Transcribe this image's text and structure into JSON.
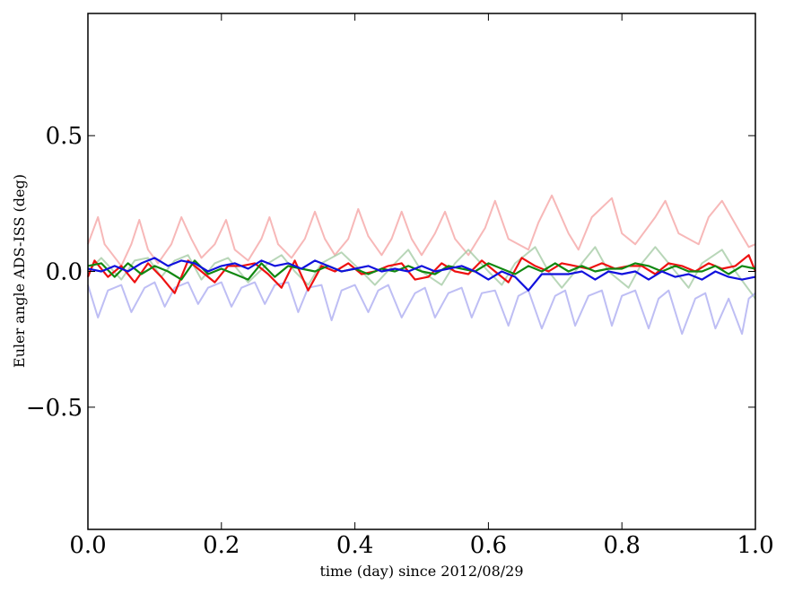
{
  "chart_data": {
    "type": "line",
    "xlabel": "time (day) since 2012/08/29",
    "ylabel": "Euler angle ADS-ISS (deg)",
    "xlim": [
      0.0,
      1.0
    ],
    "ylim": [
      -0.95,
      0.95
    ],
    "xticks": [
      0.0,
      0.2,
      0.4,
      0.6,
      0.8,
      1.0
    ],
    "xtick_labels": [
      "0.0",
      "0.2",
      "0.4",
      "0.6",
      "0.8",
      "1.0"
    ],
    "yticks": [
      -0.5,
      0.0,
      0.5
    ],
    "ytick_labels": [
      "−0.5",
      "0.0",
      "0.5"
    ],
    "grid": false,
    "series": [
      {
        "color": "#f4a0a0",
        "opacity": 0.75,
        "x": [
          0.0,
          0.015,
          0.025,
          0.05,
          0.065,
          0.077,
          0.09,
          0.105,
          0.125,
          0.14,
          0.155,
          0.17,
          0.19,
          0.207,
          0.22,
          0.24,
          0.26,
          0.272,
          0.285,
          0.305,
          0.325,
          0.34,
          0.355,
          0.37,
          0.39,
          0.405,
          0.42,
          0.44,
          0.455,
          0.47,
          0.485,
          0.5,
          0.52,
          0.535,
          0.55,
          0.57,
          0.595,
          0.61,
          0.63,
          0.66,
          0.675,
          0.695,
          0.72,
          0.735,
          0.755,
          0.785,
          0.8,
          0.82,
          0.85,
          0.865,
          0.885,
          0.915,
          0.93,
          0.95,
          0.978,
          0.99,
          1.0
        ],
        "y": [
          0.1,
          0.2,
          0.1,
          0.02,
          0.1,
          0.19,
          0.08,
          0.03,
          0.1,
          0.2,
          0.12,
          0.05,
          0.1,
          0.19,
          0.08,
          0.04,
          0.12,
          0.2,
          0.1,
          0.05,
          0.12,
          0.22,
          0.12,
          0.06,
          0.12,
          0.23,
          0.13,
          0.06,
          0.12,
          0.22,
          0.12,
          0.06,
          0.14,
          0.22,
          0.12,
          0.06,
          0.16,
          0.26,
          0.12,
          0.08,
          0.18,
          0.28,
          0.14,
          0.08,
          0.2,
          0.27,
          0.14,
          0.1,
          0.2,
          0.26,
          0.14,
          0.1,
          0.2,
          0.26,
          0.14,
          0.09,
          0.1
        ]
      },
      {
        "color": "#a0c8a0",
        "opacity": 0.75,
        "x": [
          0.0,
          0.02,
          0.05,
          0.07,
          0.09,
          0.11,
          0.13,
          0.15,
          0.17,
          0.19,
          0.21,
          0.24,
          0.27,
          0.29,
          0.31,
          0.33,
          0.35,
          0.38,
          0.41,
          0.43,
          0.46,
          0.48,
          0.5,
          0.53,
          0.55,
          0.57,
          0.6,
          0.62,
          0.64,
          0.67,
          0.69,
          0.71,
          0.74,
          0.76,
          0.78,
          0.81,
          0.83,
          0.85,
          0.88,
          0.9,
          0.92,
          0.95,
          0.97,
          1.0
        ],
        "y": [
          0.0,
          0.05,
          -0.03,
          0.04,
          0.05,
          -0.02,
          0.04,
          0.06,
          -0.03,
          0.03,
          0.05,
          -0.04,
          0.03,
          0.06,
          0.0,
          -0.05,
          0.03,
          0.07,
          0.0,
          -0.05,
          0.03,
          0.08,
          0.0,
          -0.05,
          0.03,
          0.08,
          0.0,
          -0.05,
          0.03,
          0.09,
          0.0,
          -0.06,
          0.03,
          0.09,
          0.0,
          -0.06,
          0.03,
          0.09,
          0.0,
          -0.06,
          0.03,
          0.08,
          0.0,
          -0.1
        ]
      },
      {
        "color": "#a8a8f0",
        "opacity": 0.75,
        "x": [
          0.0,
          0.015,
          0.03,
          0.05,
          0.065,
          0.085,
          0.1,
          0.115,
          0.13,
          0.15,
          0.165,
          0.18,
          0.2,
          0.215,
          0.23,
          0.25,
          0.265,
          0.28,
          0.3,
          0.315,
          0.33,
          0.35,
          0.365,
          0.38,
          0.4,
          0.42,
          0.435,
          0.45,
          0.47,
          0.49,
          0.505,
          0.52,
          0.54,
          0.56,
          0.575,
          0.59,
          0.61,
          0.63,
          0.645,
          0.66,
          0.68,
          0.7,
          0.715,
          0.73,
          0.75,
          0.77,
          0.785,
          0.8,
          0.82,
          0.84,
          0.855,
          0.87,
          0.89,
          0.91,
          0.925,
          0.94,
          0.96,
          0.98,
          0.99,
          1.0
        ],
        "y": [
          -0.05,
          -0.17,
          -0.07,
          -0.05,
          -0.15,
          -0.06,
          -0.04,
          -0.13,
          -0.06,
          -0.04,
          -0.12,
          -0.06,
          -0.04,
          -0.13,
          -0.06,
          -0.04,
          -0.12,
          -0.05,
          -0.04,
          -0.15,
          -0.06,
          -0.05,
          -0.18,
          -0.07,
          -0.05,
          -0.15,
          -0.07,
          -0.05,
          -0.17,
          -0.08,
          -0.06,
          -0.17,
          -0.08,
          -0.06,
          -0.17,
          -0.08,
          -0.07,
          -0.2,
          -0.09,
          -0.07,
          -0.21,
          -0.09,
          -0.07,
          -0.2,
          -0.09,
          -0.07,
          -0.2,
          -0.09,
          -0.07,
          -0.21,
          -0.1,
          -0.07,
          -0.23,
          -0.1,
          -0.08,
          -0.21,
          -0.1,
          -0.23,
          -0.1,
          -0.08
        ]
      },
      {
        "color": "#ee1111",
        "opacity": 1,
        "x": [
          0.0,
          0.01,
          0.03,
          0.05,
          0.07,
          0.09,
          0.11,
          0.13,
          0.15,
          0.17,
          0.19,
          0.21,
          0.23,
          0.25,
          0.27,
          0.29,
          0.31,
          0.33,
          0.35,
          0.37,
          0.39,
          0.41,
          0.43,
          0.45,
          0.47,
          0.49,
          0.51,
          0.53,
          0.55,
          0.57,
          0.59,
          0.61,
          0.63,
          0.65,
          0.67,
          0.69,
          0.71,
          0.73,
          0.75,
          0.77,
          0.79,
          0.81,
          0.83,
          0.85,
          0.87,
          0.89,
          0.91,
          0.93,
          0.95,
          0.97,
          0.99,
          1.0
        ],
        "y": [
          -0.02,
          0.04,
          -0.02,
          0.02,
          -0.04,
          0.03,
          -0.02,
          -0.08,
          0.04,
          0.0,
          -0.04,
          0.02,
          0.02,
          0.03,
          -0.01,
          -0.06,
          0.04,
          -0.07,
          0.02,
          0.0,
          0.03,
          -0.01,
          0.0,
          0.02,
          0.03,
          -0.03,
          -0.02,
          0.03,
          0.0,
          -0.01,
          0.04,
          0.0,
          -0.04,
          0.05,
          0.02,
          0.0,
          0.03,
          0.02,
          0.01,
          0.03,
          0.01,
          0.02,
          0.02,
          -0.01,
          0.03,
          0.02,
          0.0,
          0.03,
          0.01,
          0.02,
          0.06,
          0.0
        ]
      },
      {
        "color": "#118811",
        "opacity": 1,
        "x": [
          0.0,
          0.02,
          0.04,
          0.06,
          0.08,
          0.1,
          0.12,
          0.14,
          0.16,
          0.18,
          0.2,
          0.22,
          0.24,
          0.26,
          0.28,
          0.3,
          0.32,
          0.34,
          0.36,
          0.38,
          0.4,
          0.42,
          0.44,
          0.46,
          0.48,
          0.5,
          0.52,
          0.54,
          0.56,
          0.58,
          0.6,
          0.62,
          0.64,
          0.66,
          0.68,
          0.7,
          0.72,
          0.74,
          0.76,
          0.78,
          0.8,
          0.82,
          0.84,
          0.86,
          0.88,
          0.9,
          0.92,
          0.94,
          0.96,
          0.98,
          1.0
        ],
        "y": [
          0.02,
          0.03,
          -0.02,
          0.03,
          -0.01,
          0.02,
          0.0,
          -0.03,
          0.04,
          -0.01,
          0.01,
          -0.01,
          -0.03,
          0.03,
          -0.02,
          0.02,
          0.01,
          0.0,
          0.02,
          0.0,
          0.01,
          -0.01,
          0.01,
          0.0,
          0.02,
          0.0,
          -0.01,
          0.02,
          0.01,
          0.0,
          0.03,
          0.01,
          -0.01,
          0.02,
          0.0,
          0.03,
          0.0,
          0.02,
          0.0,
          0.01,
          0.01,
          0.03,
          0.02,
          0.0,
          0.02,
          0.0,
          0.0,
          0.02,
          -0.01,
          0.02,
          0.01
        ]
      },
      {
        "color": "#1111dd",
        "opacity": 1,
        "x": [
          0.0,
          0.02,
          0.04,
          0.06,
          0.08,
          0.1,
          0.12,
          0.14,
          0.16,
          0.18,
          0.2,
          0.22,
          0.24,
          0.26,
          0.28,
          0.3,
          0.32,
          0.34,
          0.36,
          0.38,
          0.4,
          0.42,
          0.44,
          0.46,
          0.48,
          0.5,
          0.52,
          0.54,
          0.56,
          0.58,
          0.6,
          0.62,
          0.64,
          0.66,
          0.68,
          0.7,
          0.72,
          0.74,
          0.76,
          0.78,
          0.8,
          0.82,
          0.84,
          0.86,
          0.88,
          0.9,
          0.92,
          0.94,
          0.96,
          0.98,
          1.0
        ],
        "y": [
          0.01,
          0.0,
          0.02,
          0.0,
          0.03,
          0.05,
          0.02,
          0.04,
          0.03,
          0.0,
          0.02,
          0.03,
          0.01,
          0.04,
          0.02,
          0.03,
          0.01,
          0.04,
          0.02,
          0.0,
          0.01,
          0.02,
          0.0,
          0.01,
          0.0,
          0.02,
          0.0,
          0.01,
          0.02,
          0.0,
          -0.03,
          0.0,
          -0.02,
          -0.07,
          -0.01,
          -0.01,
          -0.01,
          0.0,
          -0.03,
          0.0,
          -0.01,
          0.0,
          -0.03,
          0.0,
          -0.02,
          -0.01,
          -0.03,
          0.0,
          -0.02,
          -0.03,
          -0.02
        ]
      }
    ]
  }
}
